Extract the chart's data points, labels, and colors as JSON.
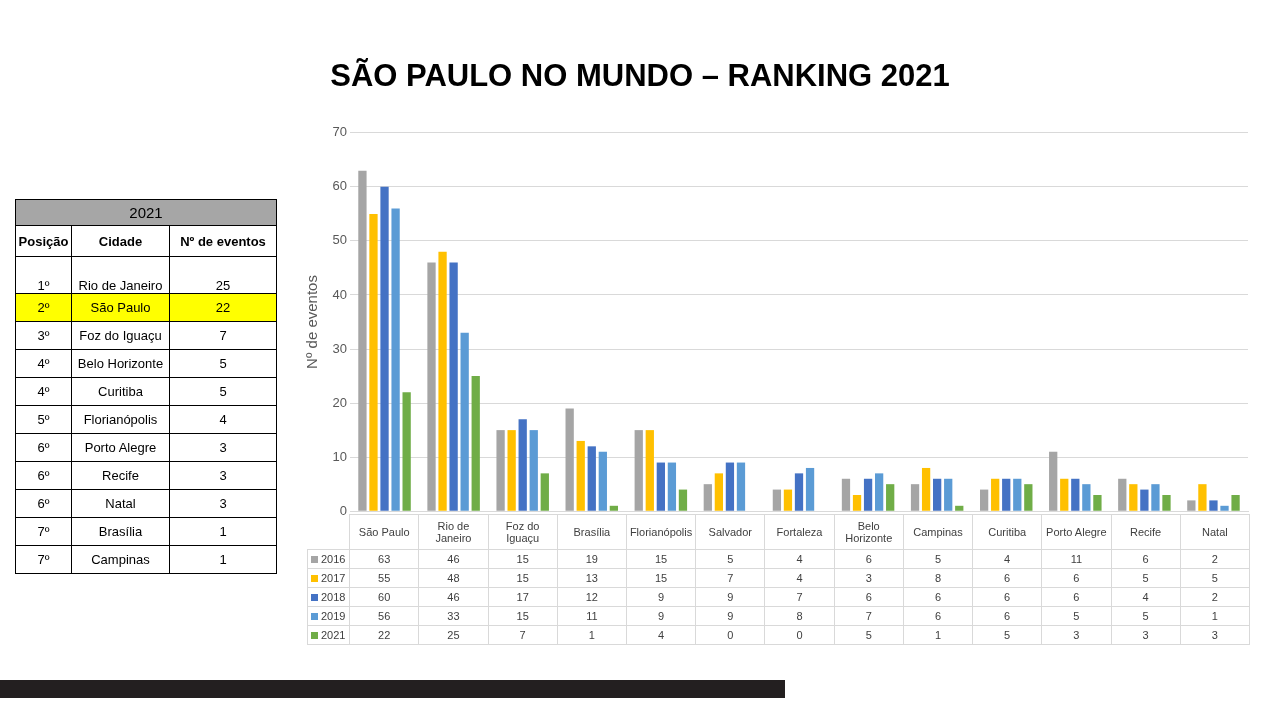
{
  "chart_data": [
    {
      "type": "bar",
      "title": "SÃO PAULO NO MUNDO – RANKING 2021",
      "ylabel": "Nº de eventos",
      "categories": [
        "São Paulo",
        "Rio de Janeiro",
        "Foz do Iguaçu",
        "Brasília",
        "Florianópolis",
        "Salvador",
        "Fortaleza",
        "Belo Horizonte",
        "Campinas",
        "Curitiba",
        "Porto Alegre",
        "Recife",
        "Natal"
      ],
      "series": [
        {
          "name": "2016",
          "color": "#a5a5a5",
          "values": [
            63,
            46,
            15,
            19,
            15,
            5,
            4,
            6,
            5,
            4,
            11,
            6,
            2
          ]
        },
        {
          "name": "2017",
          "color": "#ffc000",
          "values": [
            55,
            48,
            15,
            13,
            15,
            7,
            4,
            3,
            8,
            6,
            6,
            5,
            5
          ]
        },
        {
          "name": "2018",
          "color": "#4472c4",
          "values": [
            60,
            46,
            17,
            12,
            9,
            9,
            7,
            6,
            6,
            6,
            6,
            4,
            2
          ]
        },
        {
          "name": "2019",
          "color": "#5b9bd5",
          "values": [
            56,
            33,
            15,
            11,
            9,
            9,
            8,
            7,
            6,
            6,
            5,
            5,
            1
          ]
        },
        {
          "name": "2021",
          "color": "#70ad47",
          "values": [
            22,
            25,
            7,
            1,
            4,
            0,
            0,
            5,
            1,
            5,
            3,
            3,
            3
          ]
        }
      ],
      "ylim": [
        0,
        70
      ],
      "yticks": [
        0,
        10,
        20,
        30,
        40,
        50,
        60,
        70
      ],
      "grid": "y",
      "legend": "bottom",
      "data_labels": true
    },
    {
      "type": "other",
      "title": "2021",
      "annotations": [
        "Posição",
        "Cidade",
        "Nº de eventos"
      ],
      "y_categories": [
        "1º",
        "2º",
        "3º",
        "4º",
        "4º",
        "5º",
        "6º",
        "6º",
        "6º",
        "7º",
        "7º"
      ],
      "categories": [
        "Rio de Janeiro",
        "São Paulo",
        "Foz do Iguaçu",
        "Belo Horizonte",
        "Curitiba",
        "Florianópolis",
        "Porto Alegre",
        "Recife",
        "Natal",
        "Brasília",
        "Campinas"
      ],
      "values": [
        25,
        22,
        7,
        5,
        5,
        4,
        3,
        3,
        3,
        1,
        1
      ],
      "data_labels": true,
      "colors": [
        "#ffffff",
        "#ffff00",
        "#ffffff",
        "#ffffff",
        "#ffffff",
        "#ffffff",
        "#ffffff",
        "#ffffff",
        "#ffffff",
        "#ffffff",
        "#ffffff"
      ]
    }
  ]
}
